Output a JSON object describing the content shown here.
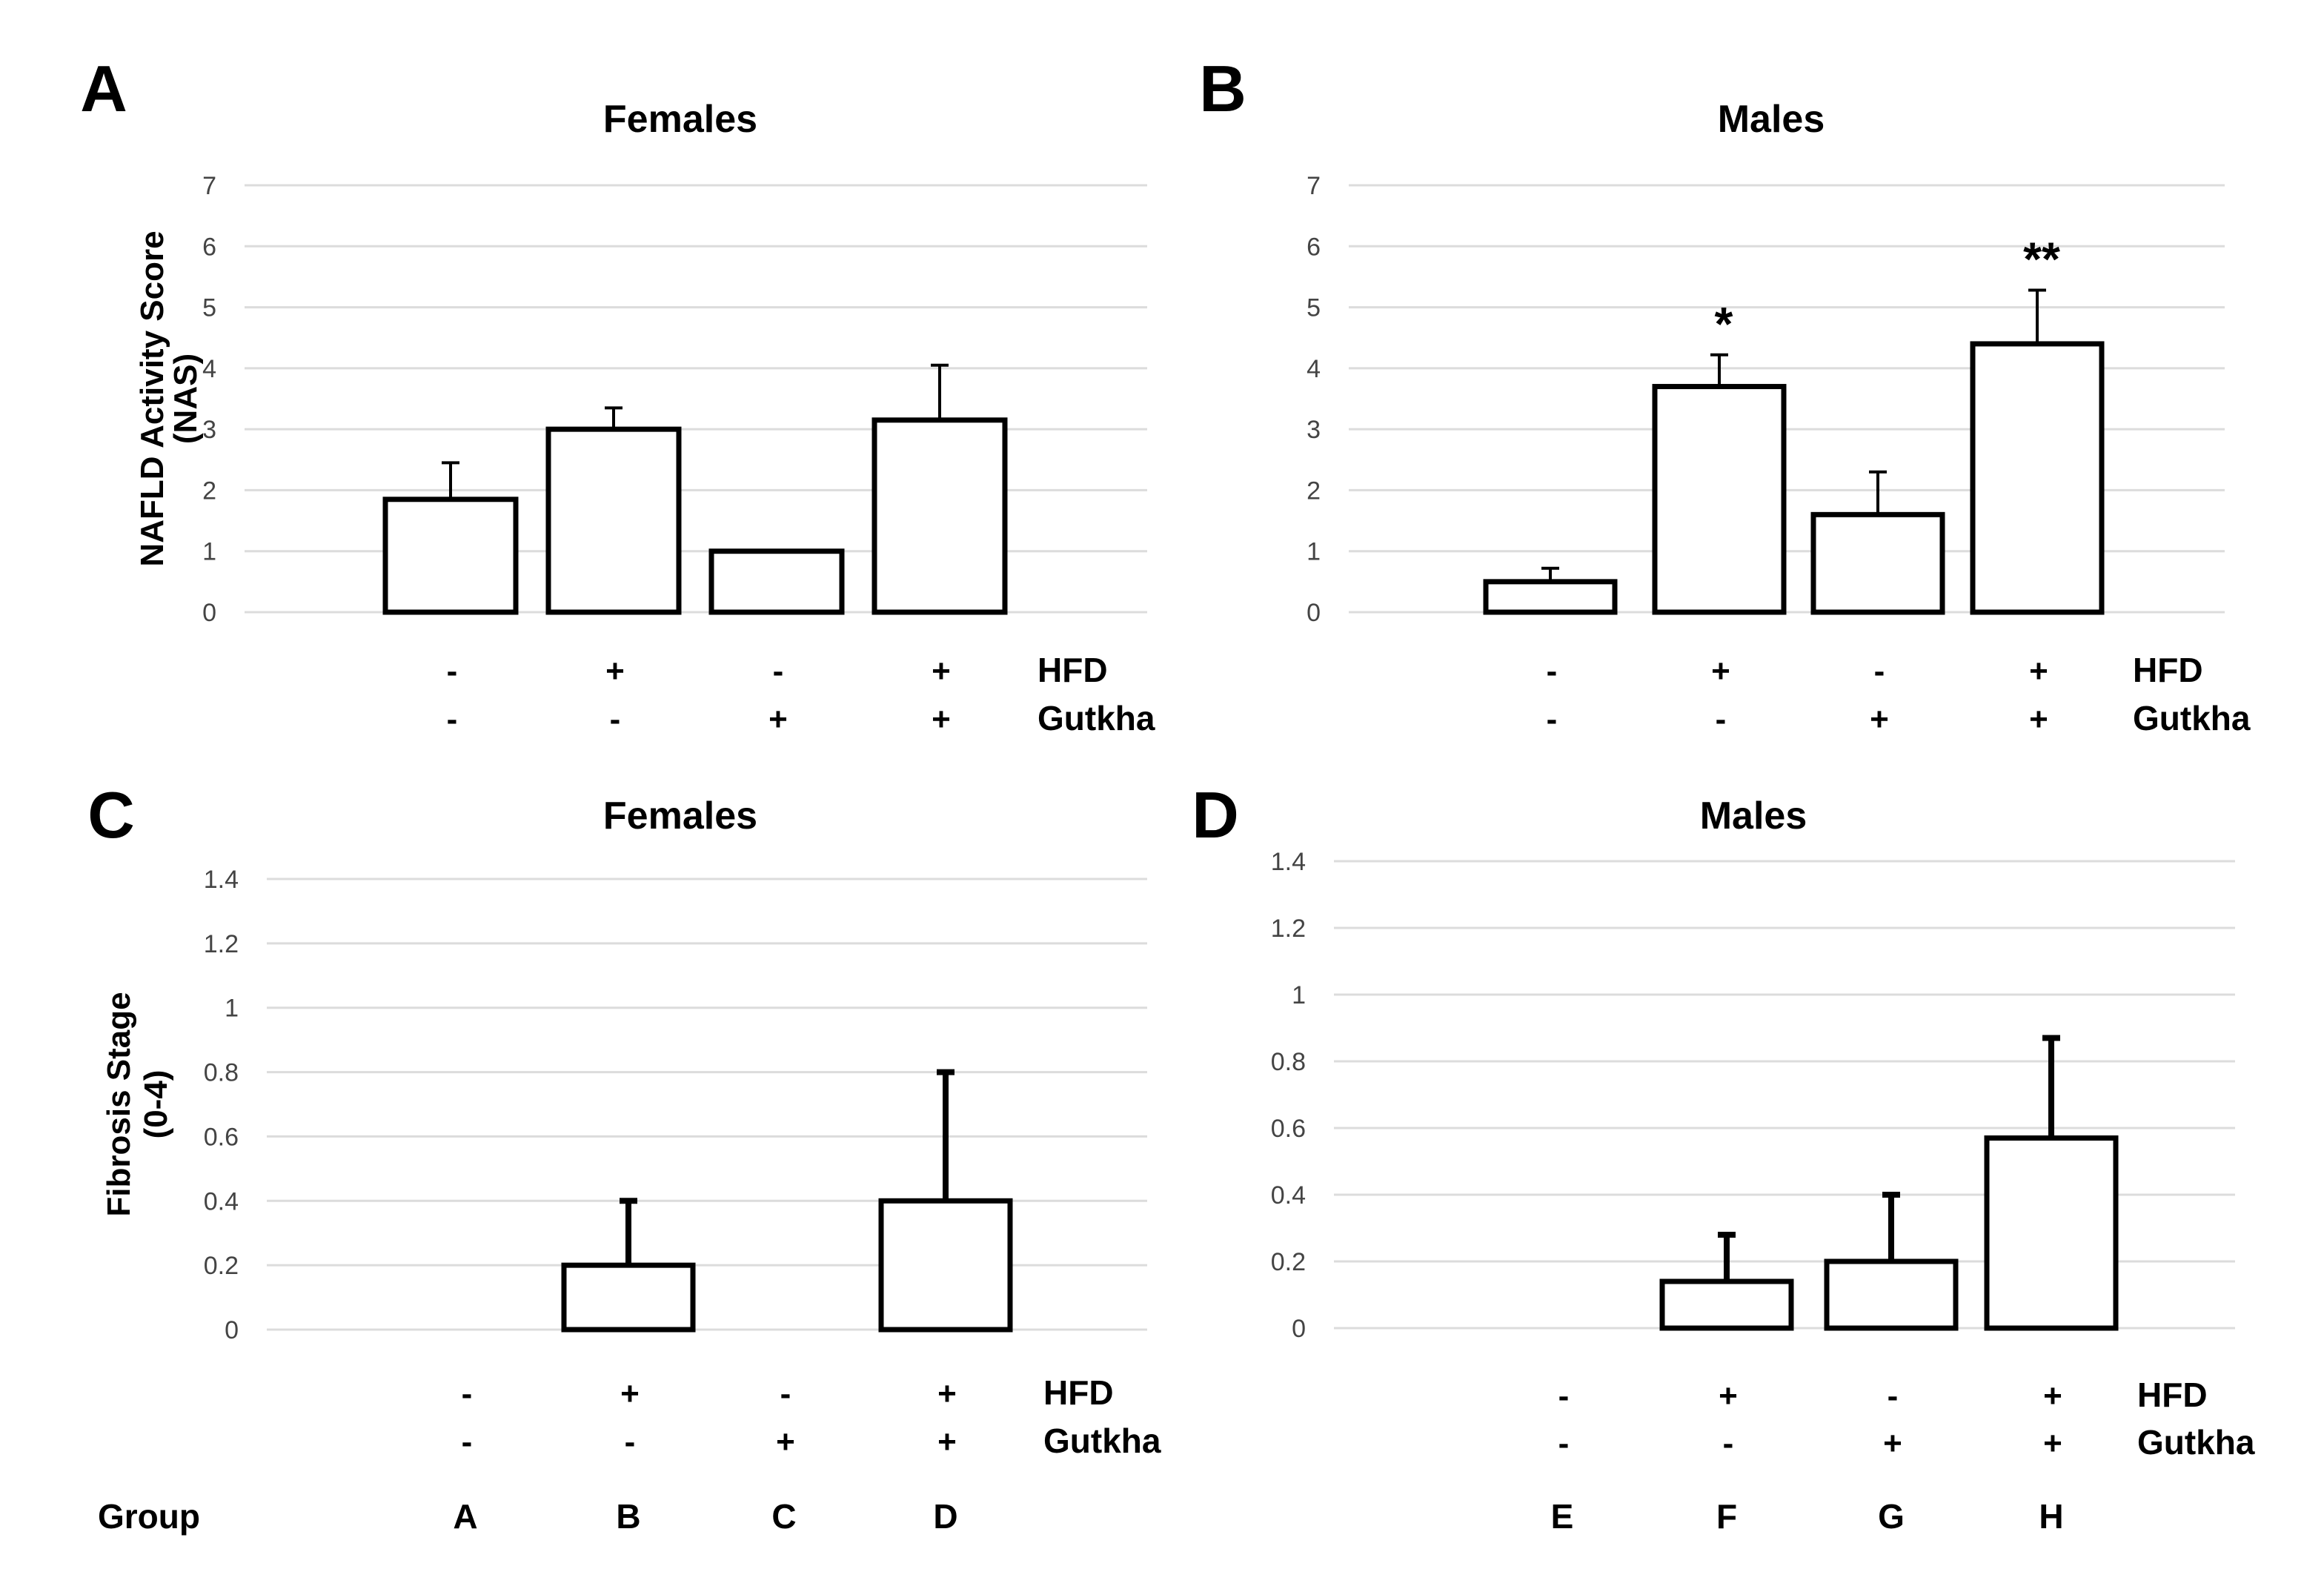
{
  "figure": {
    "panel_letters": [
      "A",
      "B",
      "C",
      "D"
    ],
    "treatment_rows": [
      "HFD",
      "Gutkha"
    ],
    "group_row_label": "Group"
  },
  "chart_data": [
    {
      "panel": "A",
      "type": "bar",
      "title": "Females",
      "ylabel": "NAFLD Activity Score (NAS)",
      "ylabel_lines": [
        "NAFLD Activity Score",
        "(NAS)"
      ],
      "ylim": [
        0,
        7
      ],
      "yticks": [
        "0",
        "1",
        "2",
        "3",
        "4",
        "5",
        "6",
        "7"
      ],
      "grid": true,
      "categories": [
        {
          "HFD": "-",
          "Gutkha": "-",
          "value": 1.85,
          "error": 0.6,
          "sig": ""
        },
        {
          "HFD": "+",
          "Gutkha": "-",
          "value": 3.0,
          "error": 0.35,
          "sig": ""
        },
        {
          "HFD": "-",
          "Gutkha": "+",
          "value": 1.0,
          "error": 0,
          "sig": ""
        },
        {
          "HFD": "+",
          "Gutkha": "+",
          "value": 3.15,
          "error": 0.9,
          "sig": ""
        }
      ]
    },
    {
      "panel": "B",
      "type": "bar",
      "title": "Males",
      "ylabel": "",
      "ylabel_lines": [],
      "ylim": [
        0,
        7
      ],
      "yticks": [
        "0",
        "1",
        "2",
        "3",
        "4",
        "5",
        "6",
        "7"
      ],
      "grid": true,
      "categories": [
        {
          "HFD": "-",
          "Gutkha": "-",
          "value": 0.5,
          "error": 0.22,
          "sig": ""
        },
        {
          "HFD": "+",
          "Gutkha": "-",
          "value": 3.7,
          "error": 0.52,
          "sig": "*"
        },
        {
          "HFD": "-",
          "Gutkha": "+",
          "value": 1.6,
          "error": 0.7,
          "sig": ""
        },
        {
          "HFD": "+",
          "Gutkha": "+",
          "value": 4.4,
          "error": 0.88,
          "sig": "**"
        }
      ]
    },
    {
      "panel": "C",
      "type": "bar",
      "title": "Females",
      "ylabel": "Fibrosis Stage (0-4)",
      "ylabel_lines": [
        "Fibrosis Stage",
        "(0-4)"
      ],
      "ylim": [
        0,
        1.4
      ],
      "yticks": [
        "0",
        "0.2",
        "0.4",
        "0.6",
        "0.8",
        "1",
        "1.2",
        "1.4"
      ],
      "grid": true,
      "categories": [
        {
          "HFD": "-",
          "Gutkha": "-",
          "group": "A",
          "value": 0,
          "error": 0,
          "sig": ""
        },
        {
          "HFD": "+",
          "Gutkha": "-",
          "group": "B",
          "value": 0.2,
          "error": 0.2,
          "sig": ""
        },
        {
          "HFD": "-",
          "Gutkha": "+",
          "group": "C",
          "value": 0,
          "error": 0,
          "sig": ""
        },
        {
          "HFD": "+",
          "Gutkha": "+",
          "group": "D",
          "value": 0.4,
          "error": 0.4,
          "sig": ""
        }
      ]
    },
    {
      "panel": "D",
      "type": "bar",
      "title": "Males",
      "ylabel": "",
      "ylabel_lines": [],
      "ylim": [
        0,
        1.4
      ],
      "yticks": [
        "0",
        "0.2",
        "0.4",
        "0.6",
        "0.8",
        "1",
        "1.2",
        "1.4"
      ],
      "grid": true,
      "categories": [
        {
          "HFD": "-",
          "Gutkha": "-",
          "group": "E",
          "value": 0,
          "error": 0,
          "sig": ""
        },
        {
          "HFD": "+",
          "Gutkha": "-",
          "group": "F",
          "value": 0.14,
          "error": 0.14,
          "sig": ""
        },
        {
          "HFD": "-",
          "Gutkha": "+",
          "group": "G",
          "value": 0.2,
          "error": 0.2,
          "sig": ""
        },
        {
          "HFD": "+",
          "Gutkha": "+",
          "group": "H",
          "value": 0.57,
          "error": 0.3,
          "sig": ""
        }
      ]
    }
  ]
}
